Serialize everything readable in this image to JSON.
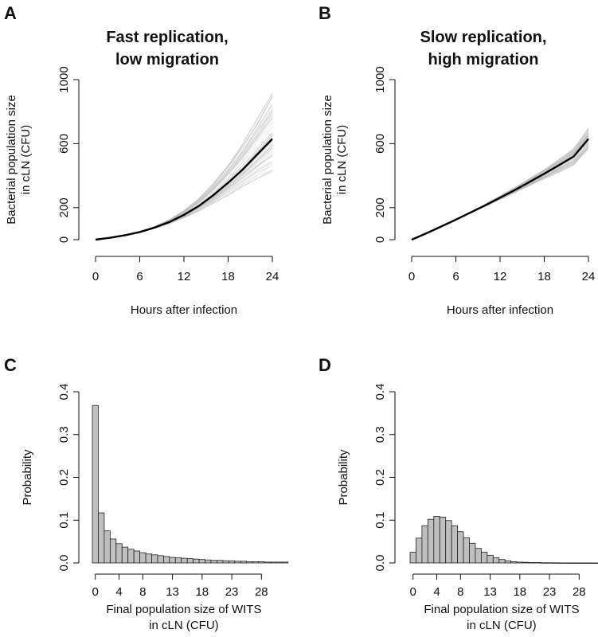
{
  "panels": {
    "A": {
      "letter": "A",
      "title_line1": "Fast replication,",
      "title_line2": "low migration"
    },
    "B": {
      "letter": "B",
      "title_line1": "Slow replication,",
      "title_line2": "high migration"
    },
    "C": {
      "letter": "C"
    },
    "D": {
      "letter": "D"
    }
  },
  "chart_data": [
    {
      "panel": "A",
      "type": "line",
      "title": "Fast replication, low migration",
      "xlabel": "Hours after infection",
      "ylabel_line1": "Bacterial population size",
      "ylabel_line2": "in cLN (CFU)",
      "xlim": [
        0,
        24
      ],
      "ylim": [
        0,
        1000
      ],
      "xticks": [
        "0",
        "6",
        "12",
        "18",
        "24"
      ],
      "yticks": [
        "0",
        "200",
        "600",
        "1000"
      ],
      "series": [
        {
          "role": "mean",
          "x": [
            0,
            2,
            4,
            6,
            8,
            10,
            12,
            14,
            16,
            18,
            20,
            22,
            24
          ],
          "y": [
            0,
            12,
            28,
            48,
            75,
            110,
            155,
            210,
            278,
            355,
            440,
            535,
            630
          ]
        }
      ],
      "simulations": {
        "count": 60,
        "spread_at_end": [
          430,
          940
        ]
      }
    },
    {
      "panel": "B",
      "type": "line",
      "title": "Slow replication, high migration",
      "xlabel": "Hours after infection",
      "ylabel_line1": "Bacterial population size",
      "ylabel_line2": "in cLN (CFU)",
      "xlim": [
        0,
        24
      ],
      "ylim": [
        0,
        1000
      ],
      "xticks": [
        "0",
        "6",
        "12",
        "18",
        "24"
      ],
      "yticks": [
        "0",
        "200",
        "600",
        "1000"
      ],
      "series": [
        {
          "role": "mean",
          "x": [
            0,
            2,
            4,
            6,
            8,
            10,
            12,
            14,
            16,
            18,
            20,
            22,
            24
          ],
          "y": [
            0,
            40,
            82,
            125,
            170,
            215,
            262,
            310,
            360,
            412,
            465,
            520,
            630
          ]
        }
      ],
      "simulations": {
        "count": 60,
        "spread_at_end": [
          560,
          700
        ]
      }
    },
    {
      "panel": "C",
      "type": "bar",
      "xlabel_line1": "Final population size of WITS",
      "xlabel_line2": "in cLN (CFU)",
      "ylabel": "Probability",
      "ylim": [
        0,
        0.4
      ],
      "yticks": [
        "0.0",
        "0.1",
        "0.2",
        "0.3",
        "0.4"
      ],
      "xtick_values": [
        0,
        4,
        8,
        13,
        18,
        23,
        28
      ],
      "xticks": [
        "0",
        "4",
        "8",
        "13",
        "18",
        "23",
        "28"
      ],
      "x": [
        0,
        1,
        2,
        3,
        4,
        5,
        6,
        7,
        8,
        9,
        10,
        11,
        12,
        13,
        14,
        15,
        16,
        17,
        18,
        19,
        20,
        21,
        22,
        23,
        24,
        25,
        26,
        27,
        28,
        29,
        30,
        31,
        32
      ],
      "values": [
        0.368,
        0.117,
        0.075,
        0.056,
        0.045,
        0.037,
        0.032,
        0.028,
        0.024,
        0.021,
        0.019,
        0.017,
        0.015,
        0.013,
        0.012,
        0.011,
        0.01,
        0.009,
        0.008,
        0.007,
        0.006,
        0.006,
        0.005,
        0.005,
        0.004,
        0.004,
        0.003,
        0.003,
        0.003,
        0.002,
        0.002,
        0.002,
        0.002
      ]
    },
    {
      "panel": "D",
      "type": "bar",
      "xlabel_line1": "Final population size of WITS",
      "xlabel_line2": "in cLN (CFU)",
      "ylabel": "Probability",
      "ylim": [
        0,
        0.4
      ],
      "yticks": [
        "0.0",
        "0.1",
        "0.2",
        "0.3",
        "0.4"
      ],
      "xtick_values": [
        0,
        4,
        8,
        13,
        18,
        23,
        28
      ],
      "xticks": [
        "0",
        "4",
        "8",
        "13",
        "18",
        "23",
        "28"
      ],
      "x": [
        0,
        1,
        2,
        3,
        4,
        5,
        6,
        7,
        8,
        9,
        10,
        11,
        12,
        13,
        14,
        15,
        16,
        17,
        18,
        19,
        20,
        21,
        22,
        23,
        24,
        25,
        26,
        27,
        28,
        29,
        30,
        31,
        32
      ],
      "values": [
        0.025,
        0.058,
        0.087,
        0.102,
        0.109,
        0.107,
        0.099,
        0.087,
        0.073,
        0.059,
        0.046,
        0.034,
        0.025,
        0.018,
        0.012,
        0.008,
        0.005,
        0.003,
        0.002,
        0.0015,
        0.001,
        0.001,
        0.0005,
        0.0005,
        0.0003,
        0.0002,
        0.0002,
        0.0001,
        0.0001,
        0.0001,
        0.0001,
        0,
        0
      ]
    }
  ]
}
